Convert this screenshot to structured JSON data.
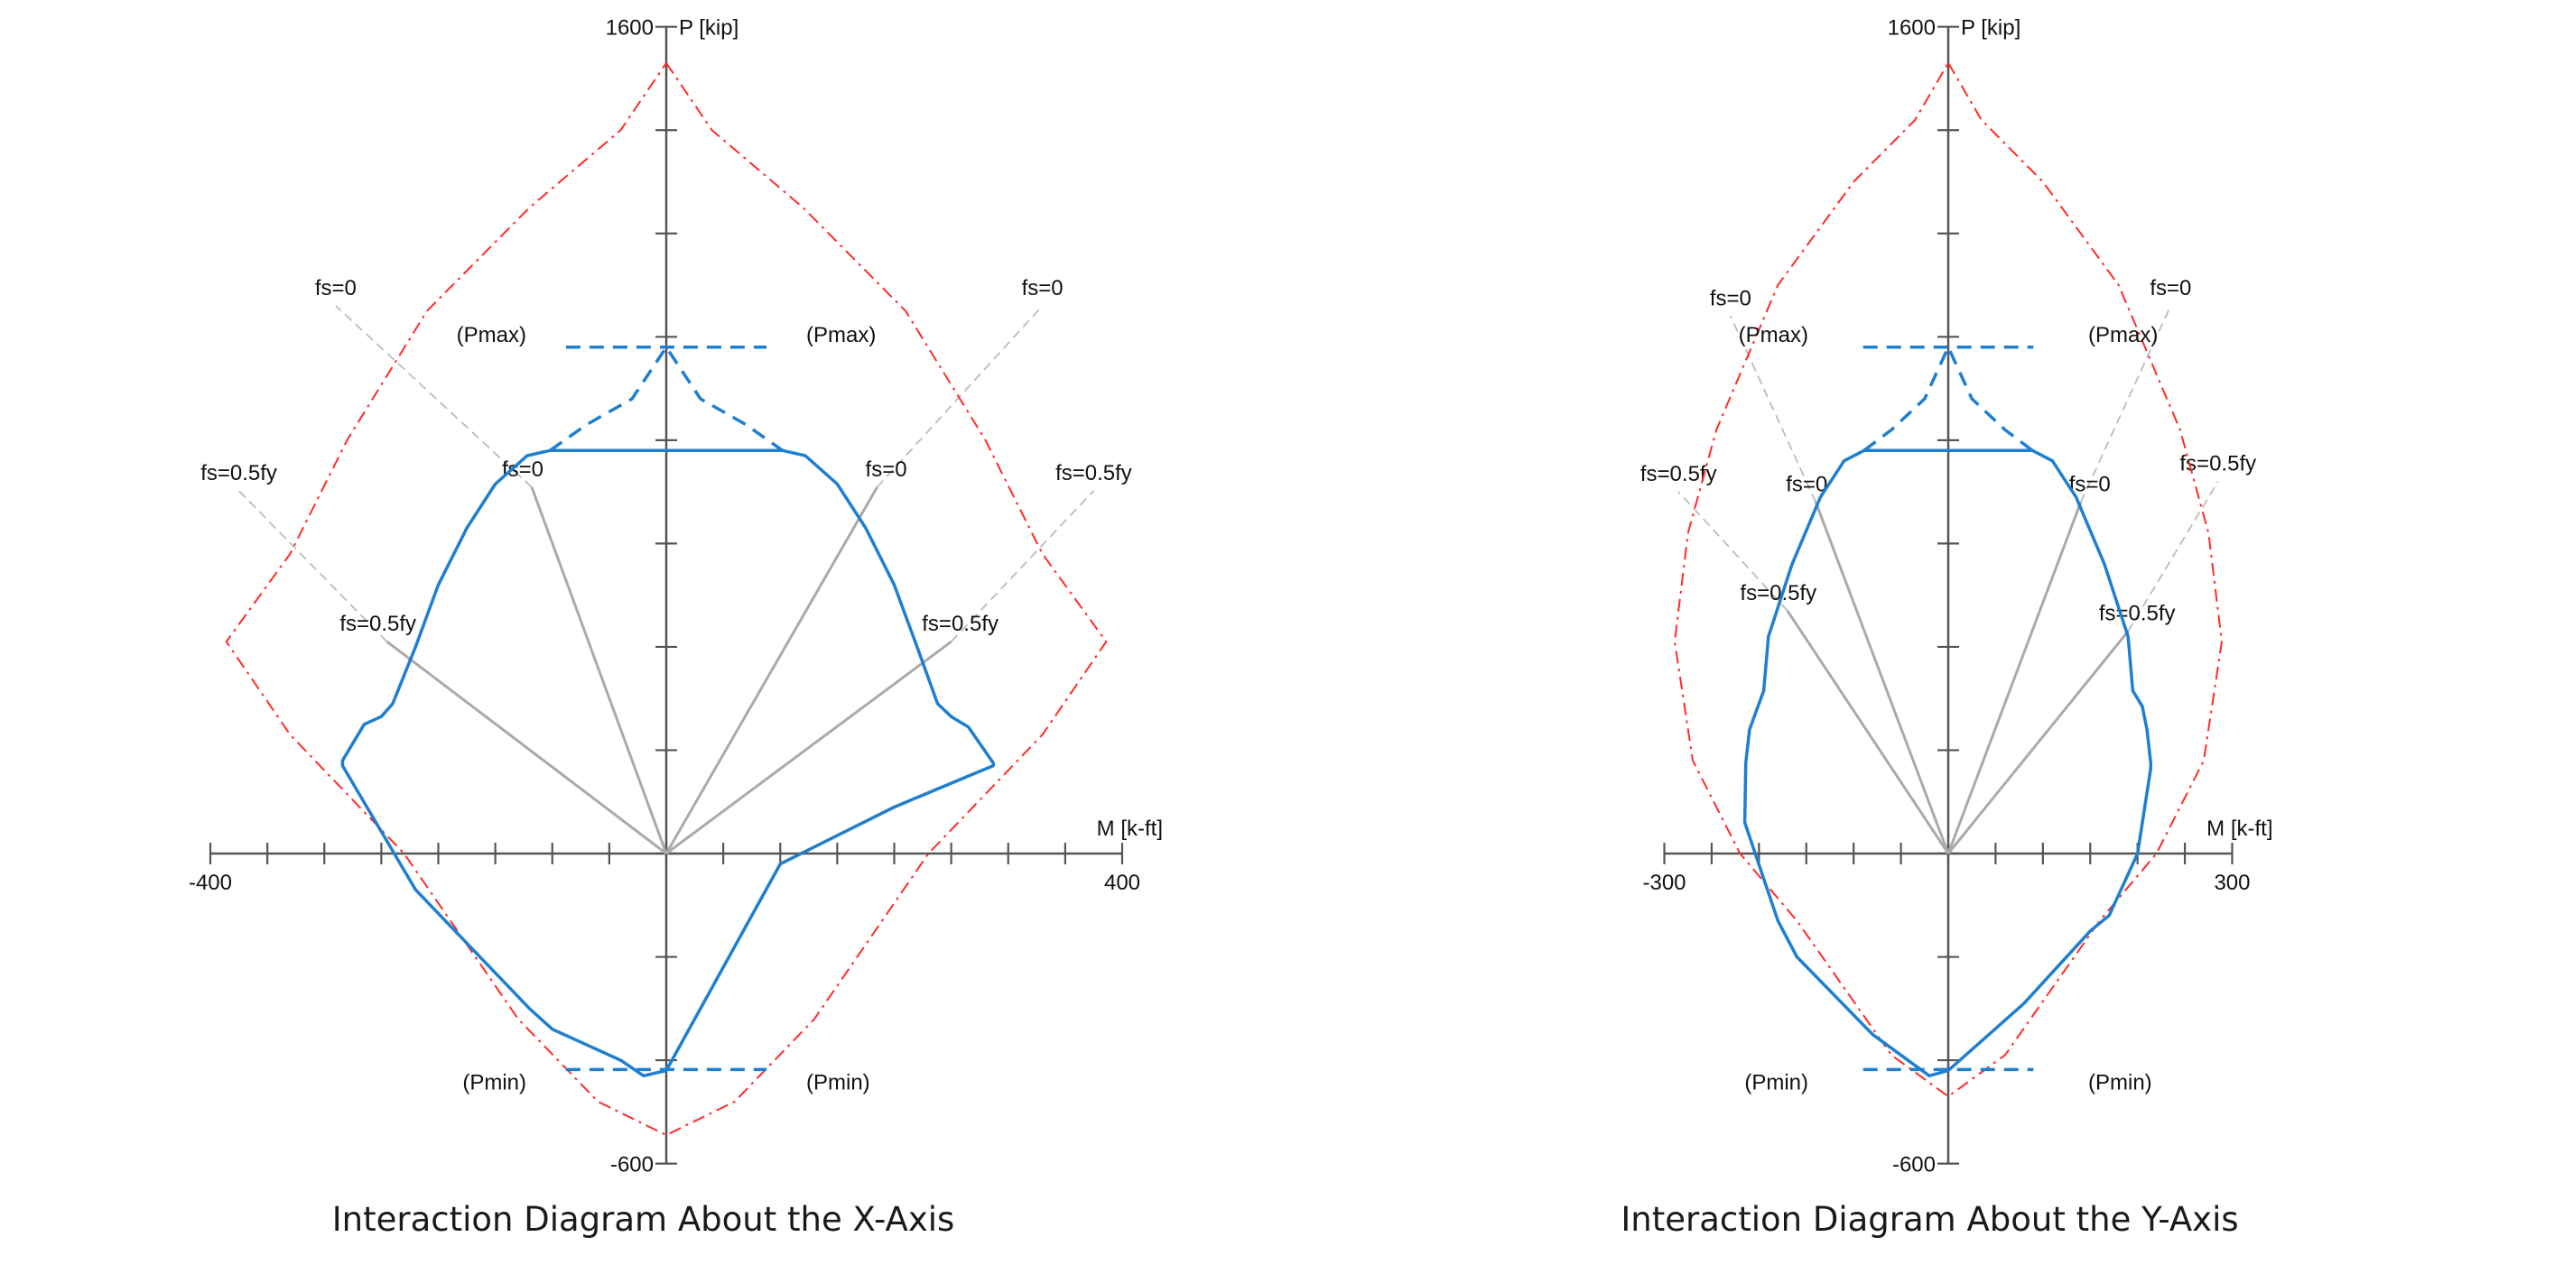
{
  "colors": {
    "axis": "#555555",
    "nominal_curve": "#ff2a2a",
    "design_curve": "#1f7fcf",
    "strain_lines": "#aaaaaa",
    "strain_lines_extension": "#bbbbbb"
  },
  "chart_data": [
    {
      "type": "line",
      "title": "Interaction Diagram About the X-Axis",
      "xlabel": "M [k-ft]",
      "ylabel": "P [kip]",
      "xlim": [
        -400,
        400
      ],
      "ylim": [
        -600,
        1600
      ],
      "x_tick_labels": [
        "-400",
        "400"
      ],
      "y_tick_labels": [
        "1600",
        "-600"
      ],
      "x_tick_step": 50,
      "y_tick_step": 200,
      "series": [
        {
          "style": "dash-dot",
          "color": "#ff2a2a",
          "points": [
            [
              0,
              1530
            ],
            [
              40,
              1400
            ],
            [
              120,
              1250
            ],
            [
              210,
              1050
            ],
            [
              280,
              800
            ],
            [
              330,
              580
            ],
            [
              386,
              410
            ],
            [
              330,
              230
            ],
            [
              230,
              0
            ],
            [
              130,
              -320
            ],
            [
              60,
              -480
            ],
            [
              0,
              -545
            ],
            [
              -60,
              -480
            ],
            [
              -130,
              -320
            ],
            [
              -230,
              0
            ],
            [
              -330,
              230
            ],
            [
              -386,
              410
            ],
            [
              -330,
              580
            ],
            [
              -280,
              800
            ],
            [
              -210,
              1050
            ],
            [
              -120,
              1250
            ],
            [
              -40,
              1400
            ],
            [
              0,
              1530
            ]
          ]
        },
        {
          "style": "solid",
          "color": "#1f7fcf",
          "points": [
            [
              -102,
              780
            ],
            [
              102,
              780
            ],
            [
              122,
              770
            ],
            [
              150,
              715
            ],
            [
              175,
              630
            ],
            [
              200,
              520
            ],
            [
              220,
              400
            ],
            [
              238,
              290
            ],
            [
              250,
              265
            ],
            [
              265,
              245
            ],
            [
              287,
              175
            ],
            [
              287,
              170
            ],
            [
              265,
              150
            ],
            [
              200,
              90
            ],
            [
              100,
              -20
            ],
            [
              0,
              -420
            ],
            [
              -20,
              -430
            ],
            [
              -40,
              -400
            ],
            [
              -100,
              -340
            ],
            [
              -120,
              -300
            ],
            [
              -220,
              -70
            ],
            [
              -284,
              170
            ],
            [
              -284,
              180
            ],
            [
              -265,
              250
            ],
            [
              -250,
              265
            ],
            [
              -240,
              290
            ],
            [
              -220,
              400
            ],
            [
              -200,
              520
            ],
            [
              -175,
              630
            ],
            [
              -150,
              715
            ],
            [
              -122,
              770
            ],
            [
              -102,
              780
            ]
          ]
        },
        {
          "style": "dashed",
          "color": "#1f7fcf",
          "points": [
            [
              -102,
              780
            ],
            [
              -70,
              830
            ],
            [
              -30,
              880
            ],
            [
              0,
              980
            ],
            [
              30,
              880
            ],
            [
              70,
              830
            ],
            [
              102,
              780
            ]
          ]
        },
        {
          "style": "dashed",
          "color": "#1f7fcf",
          "points": [
            [
              -88,
              980
            ],
            [
              88,
              980
            ]
          ]
        },
        {
          "style": "dashed",
          "color": "#1f7fcf",
          "points": [
            [
              -88,
              -418
            ],
            [
              88,
              -418
            ]
          ]
        }
      ],
      "strain_lines": [
        {
          "label": "fs=0",
          "end": [
            -118,
            709
          ],
          "ext_label": "fs=0",
          "ext_end": [
            -290,
            1060
          ]
        },
        {
          "label": "fs=0.5fy",
          "end": [
            -245,
            410
          ],
          "ext_label": "fs=0.5fy",
          "ext_end": [
            -375,
            702
          ]
        },
        {
          "label": "fs=0",
          "end": [
            185,
            709
          ],
          "ext_label": "fs=0",
          "ext_end": [
            330,
            1060
          ]
        },
        {
          "label": "fs=0.5fy",
          "end": [
            250,
            410
          ],
          "ext_label": "fs=0.5fy",
          "ext_end": [
            375,
            702
          ]
        }
      ],
      "annotations": [
        "(Pmax)",
        "(Pmax)",
        "(Pmin)",
        "(Pmin)",
        "fs=0",
        "fs=0",
        "fs=0.5fy",
        "fs=0.5fy",
        "fs=0",
        "fs=0",
        "fs=0.5fy",
        "fs=0.5fy"
      ]
    },
    {
      "type": "line",
      "title": "Interaction Diagram About the Y-Axis",
      "xlabel": "M [k-ft]",
      "ylabel": "P [kip]",
      "xlim": [
        -300,
        300
      ],
      "ylim": [
        -600,
        1600
      ],
      "x_tick_labels": [
        "-300",
        "300"
      ],
      "y_tick_labels": [
        "1600",
        "-600"
      ],
      "x_tick_step": 50,
      "y_tick_step": 200,
      "series": [
        {
          "style": "dash-dot",
          "color": "#ff2a2a",
          "points": [
            [
              0,
              1530
            ],
            [
              35,
              1420
            ],
            [
              100,
              1300
            ],
            [
              180,
              1100
            ],
            [
              245,
              820
            ],
            [
              275,
              620
            ],
            [
              289,
              410
            ],
            [
              270,
              180
            ],
            [
              220,
              0
            ],
            [
              160,
              -130
            ],
            [
              60,
              -390
            ],
            [
              0,
              -470
            ],
            [
              -60,
              -390
            ],
            [
              -160,
              -130
            ],
            [
              -220,
              0
            ],
            [
              -270,
              180
            ],
            [
              -289,
              410
            ],
            [
              -275,
              620
            ],
            [
              -245,
              820
            ],
            [
              -180,
              1100
            ],
            [
              -100,
              1300
            ],
            [
              -35,
              1420
            ],
            [
              0,
              1530
            ]
          ]
        },
        {
          "style": "solid",
          "color": "#1f7fcf",
          "points": [
            [
              -89,
              780
            ],
            [
              89,
              780
            ],
            [
              110,
              760
            ],
            [
              135,
              690
            ],
            [
              165,
              560
            ],
            [
              190,
              420
            ],
            [
              195,
              315
            ],
            [
              205,
              285
            ],
            [
              210,
              240
            ],
            [
              214,
              175
            ],
            [
              214,
              165
            ],
            [
              200,
              0
            ],
            [
              170,
              -120
            ],
            [
              150,
              -150
            ],
            [
              80,
              -290
            ],
            [
              0,
              -420
            ],
            [
              -20,
              -430
            ],
            [
              -80,
              -350
            ],
            [
              -160,
              -200
            ],
            [
              -180,
              -130
            ],
            [
              -215,
              60
            ],
            [
              -214,
              175
            ],
            [
              -210,
              240
            ],
            [
              -205,
              265
            ],
            [
              -195,
              315
            ],
            [
              -190,
              420
            ],
            [
              -165,
              560
            ],
            [
              -135,
              690
            ],
            [
              -110,
              760
            ],
            [
              -89,
              780
            ]
          ]
        },
        {
          "style": "dashed",
          "color": "#1f7fcf",
          "points": [
            [
              -89,
              780
            ],
            [
              -60,
              820
            ],
            [
              -25,
              880
            ],
            [
              0,
              980
            ],
            [
              25,
              880
            ],
            [
              60,
              820
            ],
            [
              89,
              780
            ]
          ]
        },
        {
          "style": "dashed",
          "color": "#1f7fcf",
          "points": [
            [
              -90,
              980
            ],
            [
              90,
              980
            ]
          ]
        },
        {
          "style": "dashed",
          "color": "#1f7fcf",
          "points": [
            [
              -90,
              -418
            ],
            [
              90,
              -418
            ]
          ]
        }
      ],
      "strain_lines": [
        {
          "label": "fs=0",
          "end": [
            -140,
            680
          ],
          "ext_label": "fs=0",
          "ext_end": [
            -230,
            1040
          ]
        },
        {
          "label": "fs=0.5fy",
          "end": [
            -170,
            470
          ],
          "ext_label": "fs=0.5fy",
          "ext_end": [
            -285,
            700
          ]
        },
        {
          "label": "fs=0",
          "end": [
            140,
            680
          ],
          "ext_label": "fs=0",
          "ext_end": [
            235,
            1060
          ]
        },
        {
          "label": "fs=0.5fy",
          "end": [
            190,
            430
          ],
          "ext_label": "fs=0.5fy",
          "ext_end": [
            285,
            720
          ]
        }
      ],
      "annotations": [
        "(Pmax)",
        "(Pmax)",
        "(Pmin)",
        "(Pmin)",
        "fs=0",
        "fs=0",
        "fs=0.5fy",
        "fs=0.5fy",
        "fs=0",
        "fs=0",
        "fs=0.5fy",
        "fs=0.5fy"
      ]
    }
  ]
}
